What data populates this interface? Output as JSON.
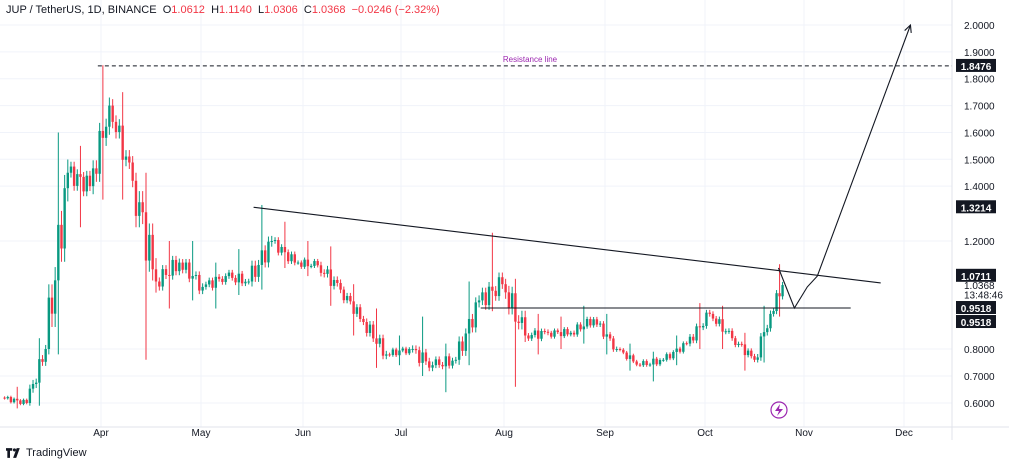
{
  "header": {
    "symbol": "JUP / TetherUS, 1D, BINANCE",
    "open_label": "O",
    "open": "1.0612",
    "high_label": "H",
    "high": "1.1140",
    "low_label": "L",
    "low": "1.0306",
    "close_label": "C",
    "close": "1.0368",
    "change": "−0.0246 (−2.32%)"
  },
  "footer": {
    "brand": "TradingView"
  },
  "colors": {
    "up": "#089981",
    "down": "#f23645",
    "line": "#131722",
    "annotation": "#9c27b0",
    "grid": "#f0f3fa"
  },
  "icons": [
    "tradingview-logo-icon",
    "lightning-icon"
  ],
  "chart_data": {
    "type": "candlestick",
    "title": "",
    "x_ticks": [
      "Apr",
      "May",
      "Jun",
      "Jul",
      "Aug",
      "Sep",
      "Oct",
      "Nov",
      "Dec"
    ],
    "y_ticks": [
      "2.0000",
      "1.9000",
      "1.8000",
      "1.7000",
      "1.6000",
      "1.5000",
      "1.4000",
      "1.2000",
      "0.8000",
      "0.7000",
      "0.6000"
    ],
    "ylim": [
      0.55,
      2.03
    ],
    "price_labels": [
      {
        "text": "1.8476",
        "value": 1.8476,
        "style": "boxed"
      },
      {
        "text": "1.3214",
        "value": 1.3214,
        "style": "boxed"
      },
      {
        "text": "1.0711",
        "value": 1.0711,
        "style": "boxed"
      },
      {
        "text": "1.0368",
        "value": 1.0368,
        "style": "plain"
      },
      {
        "text": "13:48:46",
        "value": 1.0015,
        "style": "plain"
      },
      {
        "text": "0.9518",
        "value": 0.9518,
        "style": "boxed"
      },
      {
        "text": "0.9518",
        "value": 0.9518,
        "style": "boxed2"
      }
    ],
    "annotations": [
      {
        "text": "Resistance line",
        "type": "horizontal-dashed",
        "value": 1.8476,
        "from_date": "Mar 31"
      }
    ],
    "drawings": [
      {
        "name": "descending-trendline",
        "points": [
          [
            "May 17",
            1.3214
          ],
          [
            "Nov 24",
            1.045
          ]
        ]
      },
      {
        "name": "support-line",
        "points": [
          [
            "Jul 25",
            0.9518
          ],
          [
            "Nov 15",
            0.9518
          ]
        ]
      },
      {
        "name": "projection-path",
        "points": [
          [
            "Oct 24",
            1.1
          ],
          [
            "Oct 29",
            0.9518
          ],
          [
            "Nov 2",
            1.03
          ],
          [
            "Nov 5",
            1.07
          ],
          [
            "Dec 3",
            2.0
          ]
        ]
      }
    ],
    "series_description": "Daily candles, approx. 10-day bins (start date, open, high, low, close)",
    "candles": [
      [
        "Mar 1",
        0.62,
        0.66,
        0.58,
        0.6
      ],
      [
        "Mar 9",
        0.6,
        0.84,
        0.59,
        0.8
      ],
      [
        "Mar 15",
        0.8,
        1.6,
        0.78,
        1.45
      ],
      [
        "Mar 22",
        1.45,
        1.55,
        1.25,
        1.4
      ],
      [
        "Mar 29",
        1.4,
        1.85,
        1.35,
        1.7
      ],
      [
        "Apr 4",
        1.7,
        1.75,
        1.35,
        1.42
      ],
      [
        "Apr 11",
        1.42,
        1.45,
        0.76,
        1.05
      ],
      [
        "Apr 18",
        1.05,
        1.2,
        0.95,
        1.12
      ],
      [
        "Apr 25",
        1.12,
        1.2,
        0.98,
        1.03
      ],
      [
        "May 2",
        1.03,
        1.12,
        0.95,
        1.07
      ],
      [
        "May 9",
        1.07,
        1.17,
        1.0,
        1.05
      ],
      [
        "May 16",
        1.05,
        1.33,
        1.02,
        1.2
      ],
      [
        "May 23",
        1.2,
        1.27,
        1.1,
        1.12
      ],
      [
        "May 30",
        1.12,
        1.2,
        1.07,
        1.11
      ],
      [
        "Jun 6",
        1.11,
        1.18,
        0.96,
        1.02
      ],
      [
        "Jun 13",
        1.02,
        1.04,
        0.85,
        0.9
      ],
      [
        "Jun 20",
        0.9,
        0.95,
        0.73,
        0.78
      ],
      [
        "Jun 27",
        0.78,
        0.85,
        0.74,
        0.8
      ],
      [
        "Jul 4",
        0.8,
        0.92,
        0.7,
        0.74
      ],
      [
        "Jul 11",
        0.74,
        0.82,
        0.64,
        0.76
      ],
      [
        "Jul 18",
        0.76,
        1.05,
        0.74,
        0.98
      ],
      [
        "Jul 25",
        0.98,
        1.23,
        0.94,
        1.04
      ],
      [
        "Aug 1",
        1.04,
        1.06,
        0.66,
        0.85
      ],
      [
        "Aug 8",
        0.85,
        0.93,
        0.78,
        0.86
      ],
      [
        "Aug 15",
        0.86,
        0.92,
        0.8,
        0.86
      ],
      [
        "Aug 22",
        0.86,
        0.96,
        0.82,
        0.91
      ],
      [
        "Aug 29",
        0.91,
        0.93,
        0.78,
        0.8
      ],
      [
        "Sep 5",
        0.8,
        0.82,
        0.72,
        0.74
      ],
      [
        "Sep 12",
        0.74,
        0.79,
        0.68,
        0.76
      ],
      [
        "Sep 19",
        0.76,
        0.85,
        0.74,
        0.82
      ],
      [
        "Sep 26",
        0.82,
        0.97,
        0.8,
        0.93
      ],
      [
        "Oct 3",
        0.93,
        0.96,
        0.8,
        0.84
      ],
      [
        "Oct 10",
        0.84,
        0.86,
        0.72,
        0.76
      ],
      [
        "Oct 17",
        0.76,
        0.96,
        0.75,
        0.93
      ],
      [
        "Oct 22",
        0.93,
        1.114,
        0.92,
        1.0368
      ]
    ]
  }
}
